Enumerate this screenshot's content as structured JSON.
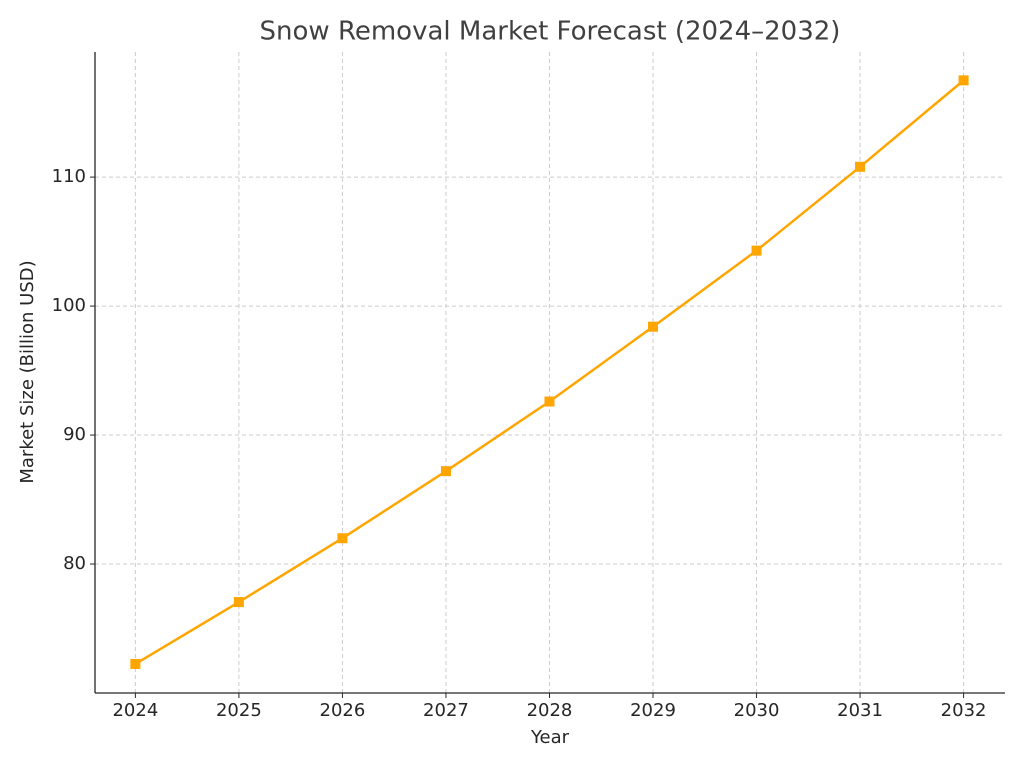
{
  "chart_data": {
    "type": "line",
    "title": "Snow Removal Market Forecast (2024–2032)",
    "x_label": "Year",
    "y_label": "Market Size (Billion USD)",
    "x": [
      2024,
      2025,
      2026,
      2027,
      2028,
      2029,
      2030,
      2031,
      2032
    ],
    "series": [
      {
        "name": "Market Size",
        "color": "#ffa500",
        "values": [
          72.25,
          77.05,
          82.0,
          87.2,
          92.6,
          98.4,
          104.3,
          110.8,
          117.5
        ]
      }
    ],
    "xlim": [
      2023.61,
      2032.4
    ],
    "xticks": [
      2024,
      2025,
      2026,
      2027,
      2028,
      2029,
      2030,
      2031,
      2032
    ],
    "ylim": [
      70,
      119.7
    ],
    "yticks": [
      80,
      90,
      100,
      110
    ],
    "grid": true,
    "marker": "square"
  }
}
